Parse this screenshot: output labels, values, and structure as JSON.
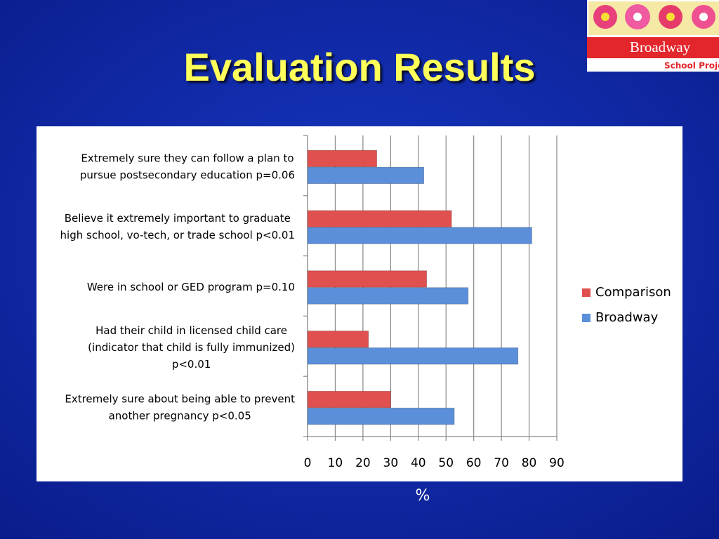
{
  "logo": {
    "name": "Broadway",
    "subtitle": "School Project"
  },
  "chart_data": {
    "type": "hbar",
    "title": "Evaluation Results",
    "xlabel": "%",
    "categories": [
      [
        "Extremely sure they can follow a plan to",
        "pursue postsecondary education p=0.06"
      ],
      [
        "Believe it extremely important to graduate",
        "high school, vo-tech, or trade school p<0.01"
      ],
      [
        "Were in school or GED program p=0.10"
      ],
      [
        "Had their child in licensed child care",
        "(indicator that child is fully immunized)",
        "p<0.01"
      ],
      [
        "Extremely sure about being able to prevent",
        "another pregnancy p<0.05"
      ]
    ],
    "series": [
      {
        "name": "Comparison",
        "color": "#e0504f",
        "values": [
          25,
          52,
          43,
          22,
          30
        ]
      },
      {
        "name": "Broadway",
        "color": "#5b8fd9",
        "values": [
          42,
          81,
          58,
          76,
          53
        ]
      }
    ],
    "xlim": [
      0,
      90
    ],
    "xticks": [
      0,
      10,
      20,
      30,
      40,
      50,
      60,
      70,
      80,
      90
    ],
    "grid": true,
    "legend": "right"
  }
}
